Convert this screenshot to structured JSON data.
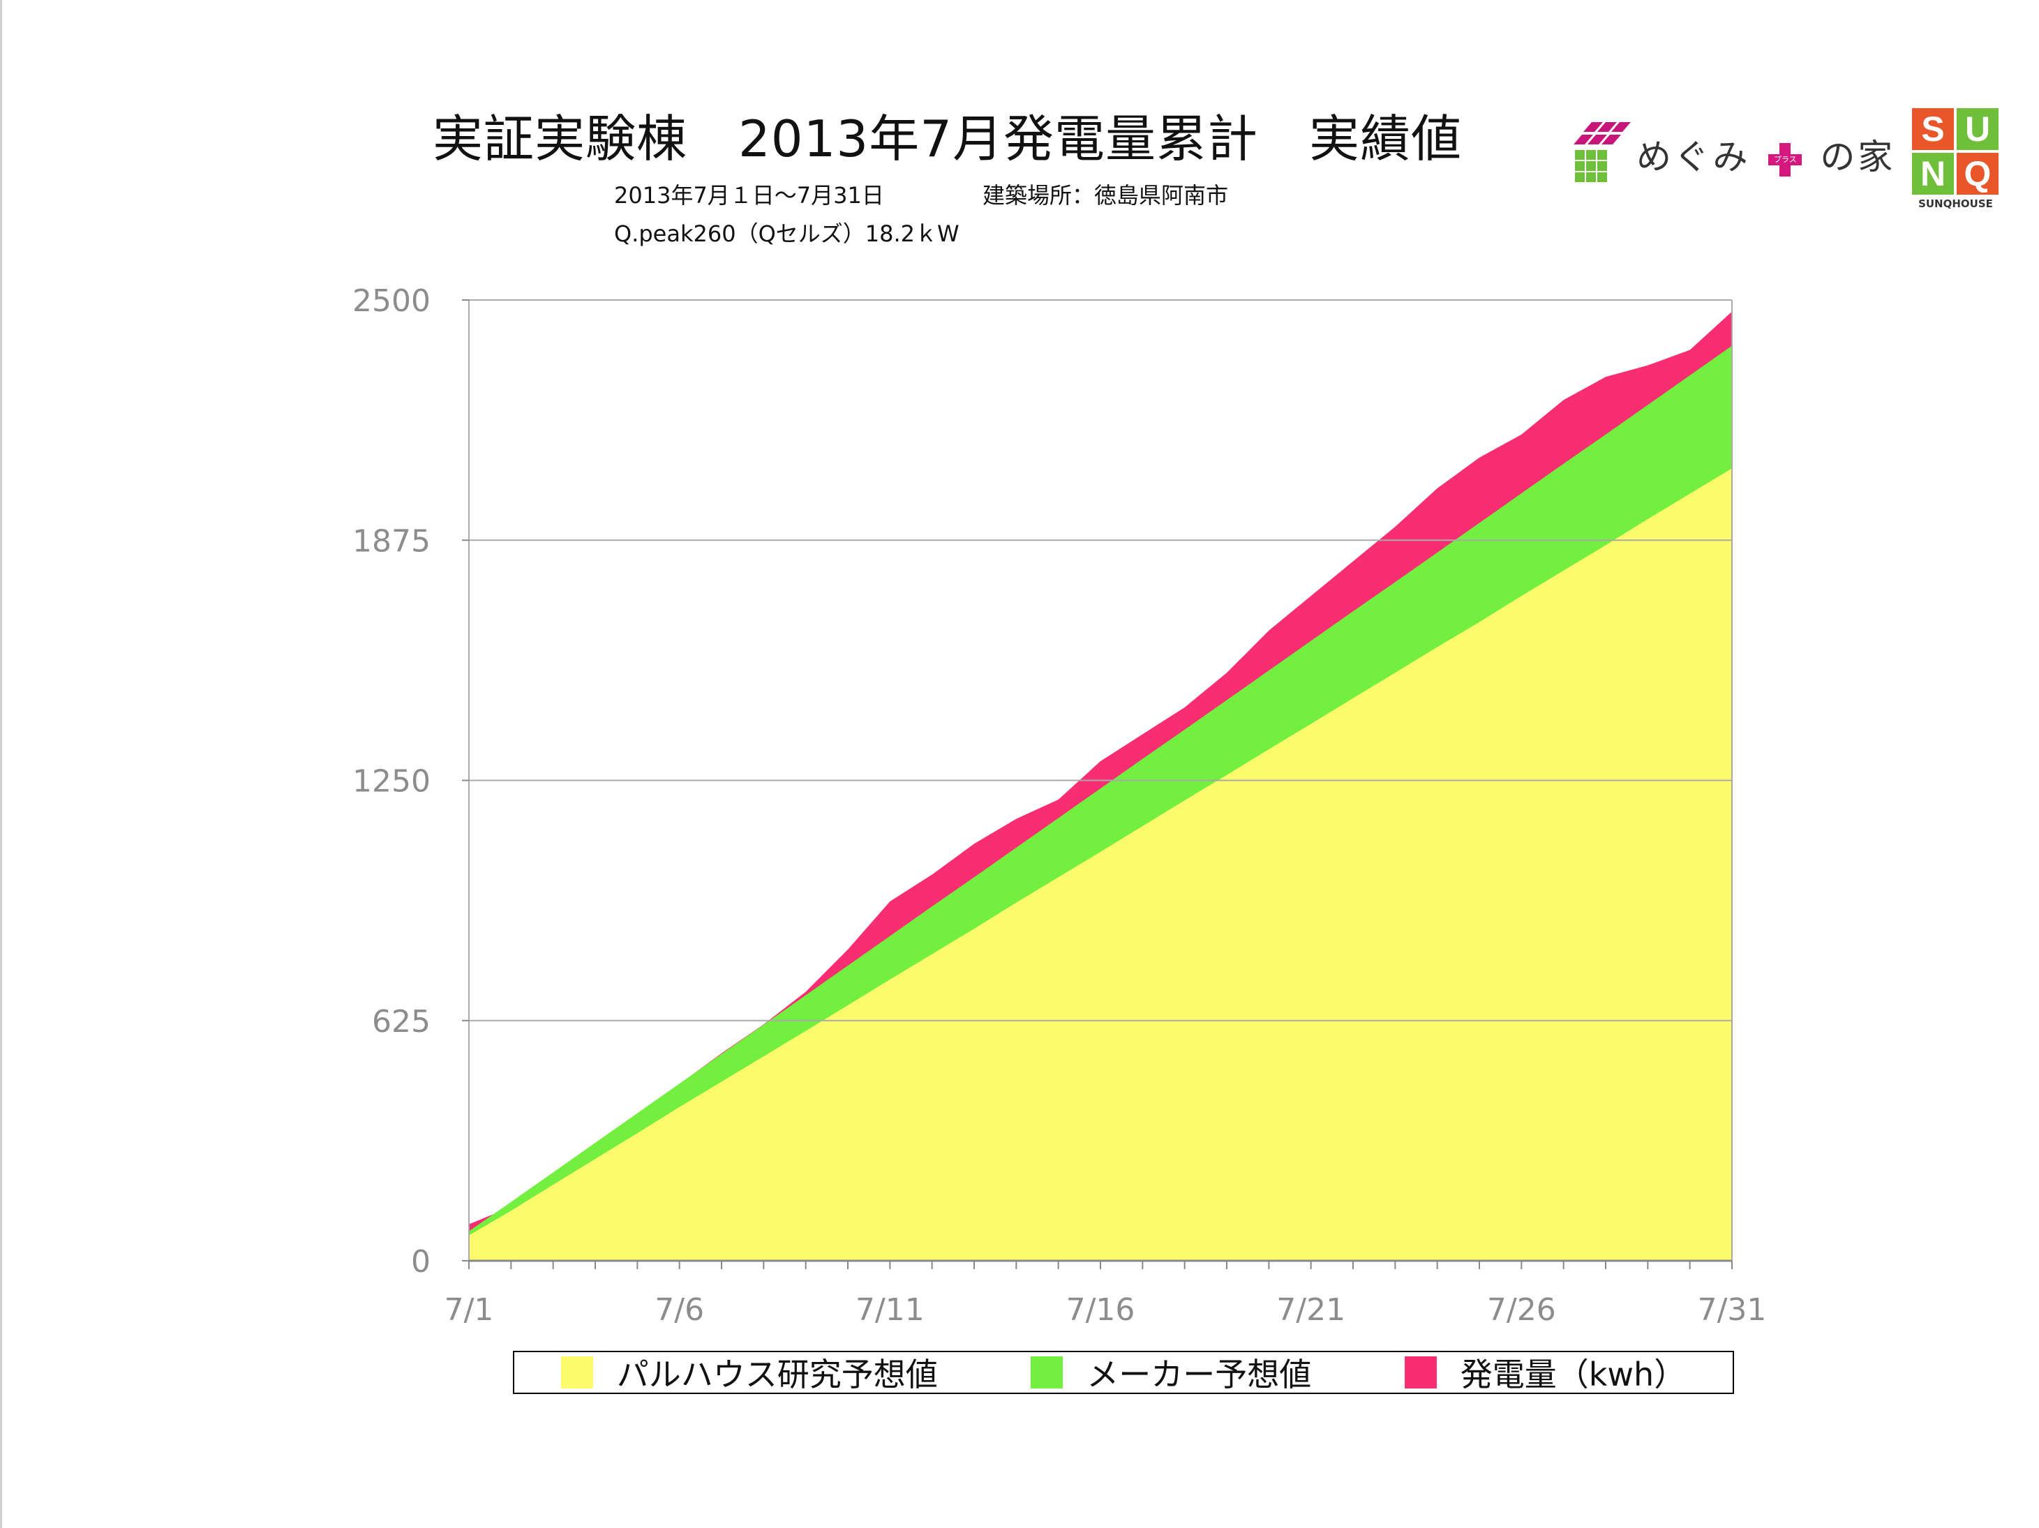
{
  "header": {
    "title": "実証実験棟　2013年7月発電量累計　実績値",
    "period": "2013年7月１日〜7月31日",
    "location": "建築場所：徳島県阿南市",
    "system": "Q.peak260（Qセルズ）18.2ｋW"
  },
  "logos": {
    "megumi": "めぐみ",
    "megumi_plus": "プラス",
    "megumi_suffix": "の家",
    "sunq_letters": [
      "S",
      "U",
      "N",
      "Q"
    ],
    "sunq_colors": [
      "#e8562a",
      "#6fbf3b",
      "#6fbf3b",
      "#e8562a"
    ],
    "sunq_caption": "SUNQHOUSE"
  },
  "colors": {
    "yellow": "#fdfb6b",
    "green": "#73f03f",
    "pink": "#f92d72",
    "grid": "#a9a9a9",
    "tick_text": "#8c8c8c"
  },
  "chart_data": {
    "type": "area",
    "x_tick_labels": [
      "7/1",
      "7/6",
      "7/11",
      "7/16",
      "7/21",
      "7/26",
      "7/31"
    ],
    "y_tick_labels": [
      "0",
      "625",
      "1250",
      "1875",
      "2500"
    ],
    "ylim": [
      0,
      2500
    ],
    "xlim": [
      1,
      31
    ],
    "grid": true,
    "legend_position": "bottom",
    "x": [
      1,
      2,
      3,
      4,
      5,
      6,
      7,
      8,
      9,
      10,
      11,
      12,
      13,
      14,
      15,
      16,
      17,
      18,
      19,
      20,
      21,
      22,
      23,
      24,
      25,
      26,
      27,
      28,
      29,
      30,
      31
    ],
    "series": [
      {
        "name": "パルハウス研究予想値",
        "color": "#fdfb6b",
        "values": [
          66,
          130,
          198,
          265,
          332,
          400,
          466,
          532,
          598,
          665,
          732,
          798,
          864,
          932,
          998,
          1064,
          1131,
          1198,
          1264,
          1331,
          1397,
          1464,
          1530,
          1597,
          1662,
          1730,
          1796,
          1862,
          1930,
          1996,
          2062
        ]
      },
      {
        "name": "メーカー予想値",
        "color": "#73f03f",
        "values": [
          77,
          153,
          230,
          307,
          384,
          461,
          538,
          614,
          691,
          768,
          845,
          922,
          998,
          1075,
          1152,
          1229,
          1306,
          1382,
          1459,
          1536,
          1613,
          1690,
          1766,
          1843,
          1920,
          1997,
          2074,
          2150,
          2227,
          2304,
          2381
        ]
      },
      {
        "name": "発電量（kwh）",
        "color": "#f92d72",
        "values": [
          95,
          140,
          220,
          300,
          380,
          460,
          540,
          615,
          700,
          810,
          935,
          1005,
          1085,
          1150,
          1200,
          1300,
          1370,
          1440,
          1530,
          1640,
          1730,
          1820,
          1910,
          2010,
          2090,
          2150,
          2240,
          2300,
          2330,
          2370,
          2470
        ]
      }
    ]
  }
}
